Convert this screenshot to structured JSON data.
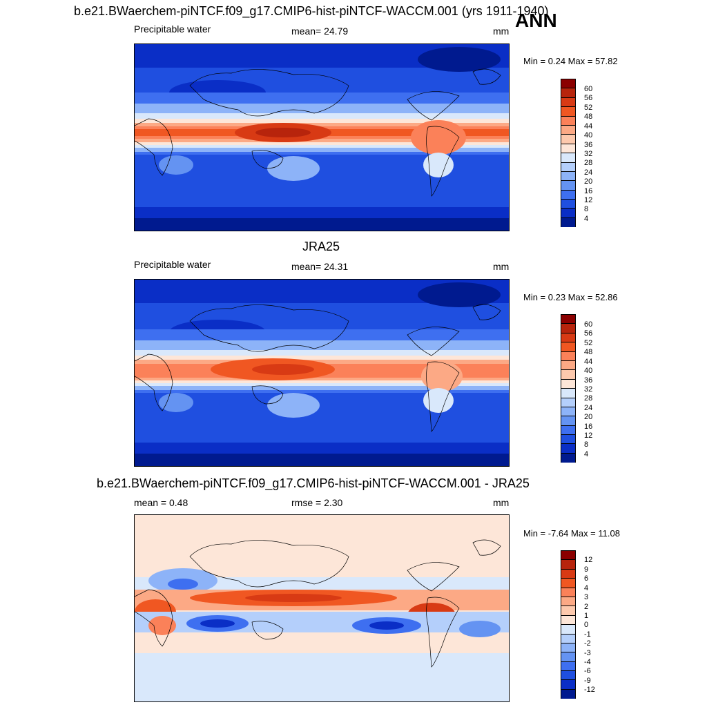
{
  "header": {
    "title": "b.e21.BWaerchem-piNTCF.f09_g17.CMIP6-hist-piNTCF-WACCM.001 (yrs 1911-1940)",
    "season": "ANN"
  },
  "panels": [
    {
      "id": "model",
      "title": "",
      "left_label": "Precipitable water",
      "center_label": "mean=  24.79",
      "unit": "mm",
      "minmax": "Min =   0.24 Max =  57.82",
      "colorbar_labels": [
        "60",
        "56",
        "52",
        "48",
        "44",
        "40",
        "36",
        "32",
        "28",
        "24",
        "20",
        "16",
        "12",
        "8",
        "4"
      ]
    },
    {
      "id": "obs",
      "title": "JRA25",
      "left_label": "Precipitable water",
      "center_label": "mean=  24.31",
      "unit": "mm",
      "minmax": "Min =   0.23 Max =  52.86",
      "colorbar_labels": [
        "60",
        "56",
        "52",
        "48",
        "44",
        "40",
        "36",
        "32",
        "28",
        "24",
        "20",
        "16",
        "12",
        "8",
        "4"
      ]
    },
    {
      "id": "diff",
      "title": "b.e21.BWaerchem-piNTCF.f09_g17.CMIP6-hist-piNTCF-WACCM.001 - JRA25",
      "left_label": "mean =   0.48",
      "center_label": "rmse =   2.30",
      "unit": "mm",
      "minmax": "Min =  -7.64 Max =  11.08",
      "colorbar_labels": [
        "12",
        "9",
        "6",
        "4",
        "3",
        "2",
        "1",
        "0",
        "-1",
        "-2",
        "-3",
        "-4",
        "-6",
        "-9",
        "-12"
      ]
    }
  ],
  "colors": {
    "abs_scale": [
      "#8b0000",
      "#b7240c",
      "#d83a14",
      "#f05722",
      "#fb8159",
      "#fca985",
      "#fdc9ad",
      "#fde6d8",
      "#d9e8fb",
      "#b4cffb",
      "#8db3f8",
      "#6493f2",
      "#3e6ff0",
      "#1f4fe0",
      "#0a2ec6",
      "#001a8f"
    ],
    "diff_scale": [
      "#8b0000",
      "#b7240c",
      "#d83a14",
      "#f05722",
      "#fb8159",
      "#fca985",
      "#fdc9ad",
      "#fde6d8",
      "#d9e8fb",
      "#b4cffb",
      "#8db3f8",
      "#6493f2",
      "#3e6ff0",
      "#1f4fe0",
      "#0a2ec6",
      "#001a8f"
    ]
  }
}
